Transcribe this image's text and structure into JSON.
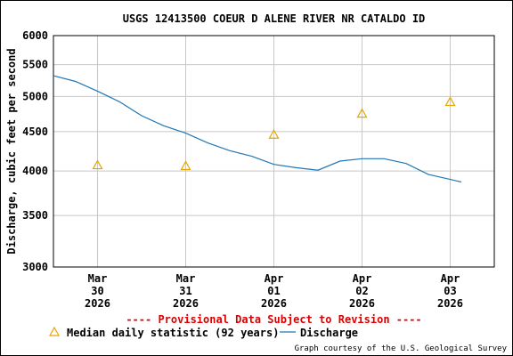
{
  "chart_data": {
    "type": "line",
    "title": "USGS 12413500 COEUR D ALENE RIVER NR CATALDO ID",
    "ylabel": "Discharge, cubic feet per second",
    "yscale": "log",
    "ylim": [
      3000,
      6000
    ],
    "yticks": [
      3000,
      3500,
      4000,
      4500,
      5000,
      5500,
      6000
    ],
    "xlim": [
      "2026-03-29 12:00",
      "2026-04-03 12:00"
    ],
    "xticks": [
      {
        "value": "2026-03-30 00:00",
        "label": [
          "Mar",
          "30",
          "2026"
        ]
      },
      {
        "value": "2026-03-31 00:00",
        "label": [
          "Mar",
          "31",
          "2026"
        ]
      },
      {
        "value": "2026-04-01 00:00",
        "label": [
          "Apr",
          "01",
          "2026"
        ]
      },
      {
        "value": "2026-04-02 00:00",
        "label": [
          "Apr",
          "02",
          "2026"
        ]
      },
      {
        "value": "2026-04-03 00:00",
        "label": [
          "Apr",
          "03",
          "2026"
        ]
      }
    ],
    "grid": true,
    "series": [
      {
        "name": "Discharge",
        "style": "line",
        "color": "#1f77b4",
        "points": [
          [
            "2026-03-29 12:00",
            5320
          ],
          [
            "2026-03-29 18:00",
            5230
          ],
          [
            "2026-03-30 00:00",
            5080
          ],
          [
            "2026-03-30 06:00",
            4920
          ],
          [
            "2026-03-30 12:00",
            4720
          ],
          [
            "2026-03-30 18:00",
            4580
          ],
          [
            "2026-03-31 00:00",
            4480
          ],
          [
            "2026-03-31 06:00",
            4350
          ],
          [
            "2026-03-31 12:00",
            4250
          ],
          [
            "2026-03-31 18:00",
            4180
          ],
          [
            "2026-04-01 00:00",
            4080
          ],
          [
            "2026-04-01 06:00",
            4040
          ],
          [
            "2026-04-01 12:00",
            4010
          ],
          [
            "2026-04-01 18:00",
            4120
          ],
          [
            "2026-04-02 00:00",
            4150
          ],
          [
            "2026-04-02 06:00",
            4150
          ],
          [
            "2026-04-02 12:00",
            4090
          ],
          [
            "2026-04-02 18:00",
            3960
          ],
          [
            "2026-04-03 00:00",
            3900
          ],
          [
            "2026-04-03 03:00",
            3870
          ]
        ]
      },
      {
        "name": "Median daily statistic (92 years)",
        "style": "marker",
        "marker": "triangle",
        "color": "#e8a400",
        "points": [
          [
            "2026-03-30 00:00",
            4070
          ],
          [
            "2026-03-31 00:00",
            4060
          ],
          [
            "2026-04-01 00:00",
            4460
          ],
          [
            "2026-04-02 00:00",
            4750
          ],
          [
            "2026-04-03 00:00",
            4920
          ]
        ]
      }
    ],
    "provisional_note": "---- Provisional Data Subject to Revision ----",
    "credit": "Graph courtesy of the U.S. Geological Survey",
    "colors": {
      "provisional": "#dd0000",
      "grid": "#c8c8c8"
    }
  }
}
